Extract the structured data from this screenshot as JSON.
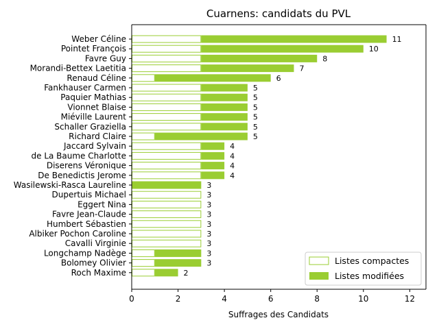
{
  "chart_data": {
    "type": "bar",
    "orientation": "horizontal",
    "stacked": true,
    "title": "Cuarnens: candidats du PVL",
    "xlabel": "Suffrages des Candidats",
    "ylabel": "",
    "xlim": [
      0,
      12.7
    ],
    "xticks": [
      "0",
      "2",
      "4",
      "6",
      "8",
      "10",
      "12"
    ],
    "grid": false,
    "legend_position": "bottom-right",
    "colors": {
      "compact_edge": "#9acd32",
      "compact_fill": "#ffffff",
      "modified_fill": "#9acd32",
      "axis": "#000000"
    },
    "categories": [
      "Weber Céline",
      "Pointet François",
      "Favre Guy",
      "Morandi-Bettex Laetitia",
      "Renaud Céline",
      "Fankhauser Carmen",
      "Paquier Mathias",
      "Vionnet Blaise",
      "Miéville Laurent",
      "Schaller Graziella",
      "Richard Claire",
      "Jaccard Sylvain",
      "de La Baume Charlotte",
      "Diserens Véronique",
      "De Benedictis Jerome",
      "Wasilewski-Rasca Laureline",
      "Dupertuis Michael",
      "Eggert Nina",
      "Favre Jean-Claude",
      "Humbert Sébastien",
      "Albiker Pochon Caroline",
      "Cavalli Virginie",
      "Longchamp Nadège",
      "Bolomey Olivier",
      "Roch Maxime"
    ],
    "series": [
      {
        "name": "Listes compactes",
        "values": [
          3,
          3,
          3,
          3,
          1,
          3,
          3,
          3,
          3,
          3,
          1,
          3,
          3,
          3,
          3,
          0,
          3,
          3,
          3,
          3,
          3,
          3,
          1,
          1,
          1
        ]
      },
      {
        "name": "Listes modifiées",
        "values": [
          8,
          7,
          5,
          4,
          5,
          2,
          2,
          2,
          2,
          2,
          4,
          1,
          1,
          1,
          1,
          3,
          0,
          0,
          0,
          0,
          0,
          0,
          2,
          2,
          1
        ]
      }
    ],
    "totals": [
      "11",
      "10",
      "8",
      "7",
      "6",
      "5",
      "5",
      "5",
      "5",
      "5",
      "5",
      "4",
      "4",
      "4",
      "4",
      "3",
      "3",
      "3",
      "3",
      "3",
      "3",
      "3",
      "3",
      "3",
      "2"
    ]
  }
}
